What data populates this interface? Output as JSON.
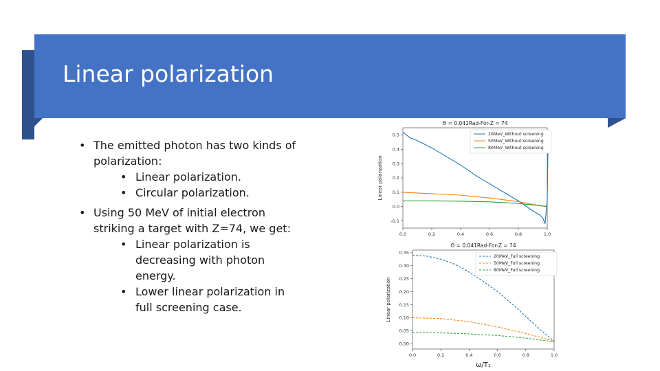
{
  "slide": {
    "title": "Linear polarization",
    "accent_color": "#4472c4",
    "accent_dark_color": "#2f528f"
  },
  "bullets": [
    {
      "text": "The emitted photon has two kinds of polarization:",
      "children": [
        "Linear polarization.",
        "Circular polarization."
      ]
    },
    {
      "text": "Using 50 MeV of initial electron striking a target with Z=74, we get:",
      "children": [
        "Linear polarization is decreasing with photon energy.",
        "Lower linear polarization in full screening case."
      ]
    }
  ],
  "chart_data": [
    {
      "type": "line",
      "title": "Θ = 0.041Rad-For-Z = 74",
      "xlabel": "",
      "ylabel": "Linear polarization",
      "xlim": [
        0.0,
        1.0
      ],
      "ylim": [
        -0.15,
        0.55
      ],
      "x_ticks": [
        "0.0",
        "0.2",
        "0.4",
        "0.6",
        "0.8",
        "1.0"
      ],
      "y_ticks": [
        "0.5",
        "0.4",
        "0.3",
        "0.2",
        "0.1",
        "0.0",
        "-0.1"
      ],
      "legend_position": "top-right",
      "grid": false,
      "series": [
        {
          "name": "20MeV_Without screening",
          "color": "#1f77b4",
          "style": "solid",
          "x": [
            0.0,
            0.05,
            0.1,
            0.2,
            0.3,
            0.4,
            0.5,
            0.6,
            0.7,
            0.8,
            0.9,
            0.95,
            0.97,
            0.985,
            1.0,
            1.005
          ],
          "y": [
            0.52,
            0.48,
            0.46,
            0.41,
            0.35,
            0.29,
            0.22,
            0.16,
            0.1,
            0.04,
            -0.03,
            -0.06,
            -0.08,
            -0.12,
            0.05,
            0.38
          ]
        },
        {
          "name": "50MeV_Without screening",
          "color": "#ff7f0e",
          "style": "solid",
          "x": [
            0.0,
            0.2,
            0.4,
            0.6,
            0.8,
            0.9,
            1.0
          ],
          "y": [
            0.1,
            0.09,
            0.08,
            0.06,
            0.035,
            0.015,
            0.0
          ]
        },
        {
          "name": "80MeV_Without screening",
          "color": "#2ca02c",
          "style": "solid",
          "x": [
            0.0,
            0.2,
            0.4,
            0.6,
            0.8,
            0.9,
            1.0
          ],
          "y": [
            0.04,
            0.04,
            0.038,
            0.033,
            0.022,
            0.012,
            0.0
          ]
        }
      ]
    },
    {
      "type": "line",
      "title": "Θ = 0.041Rad-For-Z = 74",
      "xlabel": "ω/T₁",
      "ylabel": "Linear polarization",
      "xlim": [
        0.0,
        1.0
      ],
      "ylim": [
        -0.02,
        0.36
      ],
      "x_ticks": [
        "0.0",
        "0.2",
        "0.4",
        "0.6",
        "0.8",
        "1.0"
      ],
      "y_ticks": [
        "0.35",
        "0.30",
        "0.25",
        "0.20",
        "0.15",
        "0.10",
        "0.05",
        "0.00"
      ],
      "legend_position": "top-right",
      "grid": false,
      "series": [
        {
          "name": "20MeV_Full screening",
          "color": "#1f77b4",
          "style": "dashed",
          "x": [
            0.0,
            0.1,
            0.2,
            0.3,
            0.4,
            0.5,
            0.6,
            0.7,
            0.8,
            0.9,
            1.0
          ],
          "y": [
            0.34,
            0.337,
            0.325,
            0.305,
            0.275,
            0.24,
            0.2,
            0.155,
            0.105,
            0.055,
            0.01
          ]
        },
        {
          "name": "50MeV_Full screening",
          "color": "#ff7f0e",
          "style": "dashed",
          "x": [
            0.0,
            0.2,
            0.4,
            0.6,
            0.8,
            0.9,
            1.0
          ],
          "y": [
            0.1,
            0.097,
            0.085,
            0.065,
            0.04,
            0.025,
            0.01
          ]
        },
        {
          "name": "80MeV_Full screening",
          "color": "#2ca02c",
          "style": "dashed",
          "x": [
            0.0,
            0.2,
            0.4,
            0.6,
            0.8,
            0.9,
            1.0
          ],
          "y": [
            0.043,
            0.042,
            0.038,
            0.032,
            0.022,
            0.015,
            0.008
          ]
        }
      ]
    }
  ]
}
